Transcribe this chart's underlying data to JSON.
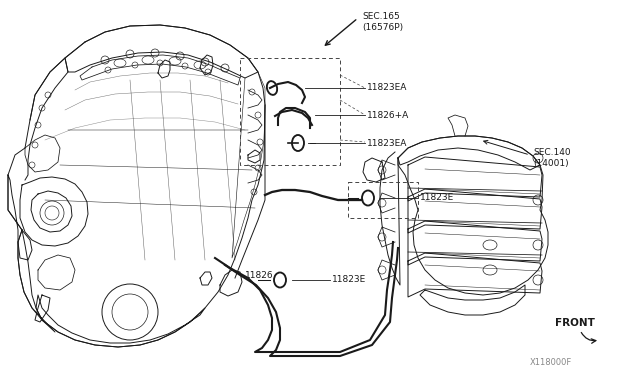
{
  "bg_color": "#ffffff",
  "line_color": "#1a1a1a",
  "dashed_color": "#444444",
  "labels": {
    "sec165": "SEC.165\n(16576P)",
    "11823EA_top": "11823EA",
    "11826A": "11826+A",
    "11823EA_mid": "11823EA",
    "11823E_mid": "11823E",
    "11826": "11826",
    "11823E_bot": "11823E",
    "sec140": "SEC.140\n(14001)",
    "front": "FRONT",
    "part_num": "X118000F"
  },
  "figsize": [
    6.4,
    3.72
  ],
  "dpi": 100
}
